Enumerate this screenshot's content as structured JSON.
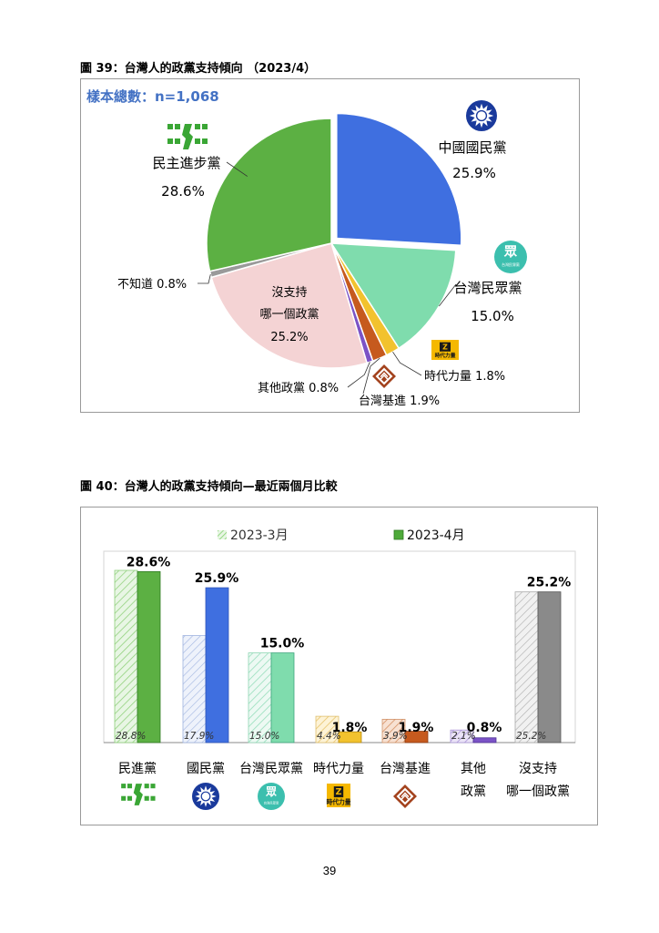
{
  "figure39": {
    "title": "圖 39：台灣人的政黨支持傾向 （2023/4）",
    "sample": "樣本總數：n=1,068"
  },
  "figure40": {
    "title": "圖 40：台灣人的政黨支持傾向—最近兩個月比較"
  },
  "page_number": "39",
  "colors": {
    "dpp": "#5cb043",
    "kmt": "#3f6fe0",
    "tpp": "#7fdcad",
    "npp": "#f2c22e",
    "tsp": "#c65a1e",
    "other": "#7b53c6",
    "none": "#f4d3d4",
    "unknown": "#9a9a9a",
    "sample_text": "#4472c4"
  },
  "chart_data": [
    {
      "type": "pie",
      "title": "圖 39：台灣人的政黨支持傾向 （2023/4）",
      "slices": [
        {
          "key": "kmt",
          "name": "中國國民黨",
          "value": 25.9,
          "label": "25.9%",
          "color": "#3f6fe0"
        },
        {
          "key": "tpp",
          "name": "台灣民眾黨",
          "value": 15.0,
          "label": "15.0%",
          "color": "#7fdcad"
        },
        {
          "key": "npp",
          "name": "時代力量",
          "value": 1.8,
          "label": "時代力量 1.8%",
          "color": "#f2c22e"
        },
        {
          "key": "tsp",
          "name": "台灣基進",
          "value": 1.9,
          "label": "台灣基進 1.9%",
          "color": "#c65a1e"
        },
        {
          "key": "other",
          "name": "其他政黨",
          "value": 0.8,
          "label": "其他政黨 0.8%",
          "color": "#7b53c6"
        },
        {
          "key": "none",
          "name": "沒支持 哪一個政黨",
          "value": 25.2,
          "label": "25.2%",
          "color": "#f4d3d4"
        },
        {
          "key": "unknown",
          "name": "不知道",
          "value": 0.8,
          "label": "不知道 0.8%",
          "color": "#9a9a9a"
        },
        {
          "key": "dpp",
          "name": "民主進步黨",
          "value": 28.6,
          "label": "28.6%",
          "color": "#5cb043"
        }
      ]
    },
    {
      "type": "bar",
      "title": "圖 40：台灣人的政黨支持傾向—最近兩個月比較",
      "legend": [
        "2023-3月",
        "2023-4月"
      ],
      "categories": [
        {
          "key": "dpp",
          "lines": [
            "民進黨"
          ]
        },
        {
          "key": "kmt",
          "lines": [
            "國民黨"
          ]
        },
        {
          "key": "tpp",
          "lines": [
            "台灣民眾黨"
          ]
        },
        {
          "key": "npp",
          "lines": [
            "時代力量"
          ]
        },
        {
          "key": "tsp",
          "lines": [
            "台灣基進"
          ]
        },
        {
          "key": "other",
          "lines": [
            "其他",
            "政黨"
          ]
        },
        {
          "key": "none",
          "lines": [
            "沒支持",
            "哪一個政黨"
          ]
        }
      ],
      "series": [
        {
          "name": "2023-3月",
          "values": [
            28.8,
            17.9,
            15.0,
            4.4,
            3.9,
            2.1,
            25.2
          ],
          "labels": [
            "28.8%",
            "17.9%",
            "15.0%",
            "4.4%",
            "3.9%",
            "2.1%",
            "25.2%"
          ]
        },
        {
          "name": "2023-4月",
          "values": [
            28.6,
            25.9,
            15.0,
            1.8,
            1.9,
            0.8,
            25.2
          ],
          "labels": [
            "28.6%",
            "25.9%",
            "15.0%",
            "1.8%",
            "1.9%",
            "0.8%",
            "25.2%"
          ]
        }
      ],
      "bar_colors": [
        "#5cb043",
        "#3f6fe0",
        "#7fdcad",
        "#f2c22e",
        "#c65a1e",
        "#7b53c6",
        "#8a8a8a"
      ],
      "ylim": [
        0,
        32
      ],
      "grid": false,
      "legend_position": "top"
    }
  ],
  "logos": {
    "tpp_text": "台灣民眾黨",
    "npp_text": "時代力量"
  }
}
